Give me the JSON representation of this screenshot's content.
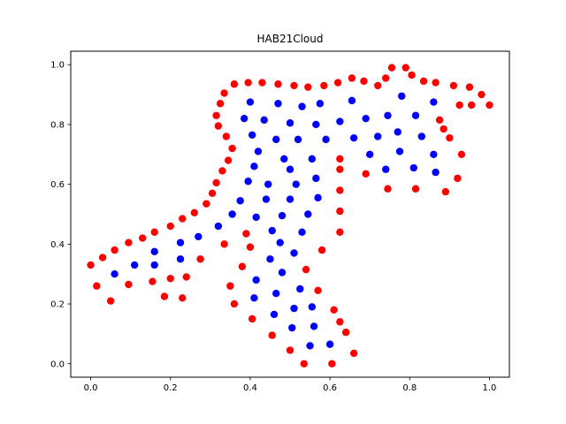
{
  "chart_data": {
    "type": "scatter",
    "title": "HAB21Cloud",
    "xlabel": "",
    "ylabel": "",
    "xlim": [
      -0.05,
      1.05
    ],
    "ylim": [
      -0.045,
      1.045
    ],
    "xticks": [
      0.0,
      0.2,
      0.4,
      0.6,
      0.8,
      1.0
    ],
    "xtick_labels": [
      "0.0",
      "0.2",
      "0.4",
      "0.6",
      "0.8",
      "1.0"
    ],
    "yticks": [
      0.0,
      0.2,
      0.4,
      0.6,
      0.8,
      1.0
    ],
    "ytick_labels": [
      "0.0",
      "0.2",
      "0.4",
      "0.6",
      "0.8",
      "1.0"
    ],
    "grid": false,
    "legend": false,
    "series": [
      {
        "color": "#ff0000",
        "points": [
          [
            0.0,
            0.33
          ],
          [
            0.015,
            0.26
          ],
          [
            0.03,
            0.355
          ],
          [
            0.05,
            0.21
          ],
          [
            0.06,
            0.38
          ],
          [
            0.095,
            0.265
          ],
          [
            0.095,
            0.405
          ],
          [
            0.13,
            0.42
          ],
          [
            0.155,
            0.275
          ],
          [
            0.16,
            0.44
          ],
          [
            0.185,
            0.225
          ],
          [
            0.2,
            0.46
          ],
          [
            0.2,
            0.285
          ],
          [
            0.23,
            0.22
          ],
          [
            0.23,
            0.485
          ],
          [
            0.24,
            0.29
          ],
          [
            0.26,
            0.505
          ],
          [
            0.275,
            0.35
          ],
          [
            0.29,
            0.535
          ],
          [
            0.305,
            0.57
          ],
          [
            0.315,
            0.605
          ],
          [
            0.315,
            0.83
          ],
          [
            0.32,
            0.795
          ],
          [
            0.325,
            0.87
          ],
          [
            0.33,
            0.645
          ],
          [
            0.335,
            0.905
          ],
          [
            0.335,
            0.4
          ],
          [
            0.34,
            0.76
          ],
          [
            0.345,
            0.68
          ],
          [
            0.35,
            0.26
          ],
          [
            0.355,
            0.72
          ],
          [
            0.36,
            0.935
          ],
          [
            0.36,
            0.2
          ],
          [
            0.38,
            0.325
          ],
          [
            0.39,
            0.435
          ],
          [
            0.395,
            0.94
          ],
          [
            0.4,
            0.39
          ],
          [
            0.405,
            0.15
          ],
          [
            0.43,
            0.94
          ],
          [
            0.455,
            0.095
          ],
          [
            0.47,
            0.935
          ],
          [
            0.5,
            0.045
          ],
          [
            0.51,
            0.93
          ],
          [
            0.535,
            0.0
          ],
          [
            0.54,
            0.315
          ],
          [
            0.545,
            0.925
          ],
          [
            0.57,
            0.245
          ],
          [
            0.58,
            0.38
          ],
          [
            0.585,
            0.93
          ],
          [
            0.605,
            0.0
          ],
          [
            0.61,
            0.18
          ],
          [
            0.62,
            0.94
          ],
          [
            0.625,
            0.44
          ],
          [
            0.625,
            0.51
          ],
          [
            0.625,
            0.58
          ],
          [
            0.625,
            0.65
          ],
          [
            0.625,
            0.685
          ],
          [
            0.625,
            0.14
          ],
          [
            0.64,
            0.105
          ],
          [
            0.655,
            0.955
          ],
          [
            0.66,
            0.035
          ],
          [
            0.685,
            0.945
          ],
          [
            0.69,
            0.635
          ],
          [
            0.72,
            0.93
          ],
          [
            0.74,
            0.955
          ],
          [
            0.745,
            0.585
          ],
          [
            0.755,
            0.99
          ],
          [
            0.79,
            0.99
          ],
          [
            0.805,
            0.965
          ],
          [
            0.815,
            0.585
          ],
          [
            0.835,
            0.945
          ],
          [
            0.865,
            0.94
          ],
          [
            0.875,
            0.815
          ],
          [
            0.885,
            0.785
          ],
          [
            0.89,
            0.575
          ],
          [
            0.9,
            0.755
          ],
          [
            0.91,
            0.93
          ],
          [
            0.92,
            0.62
          ],
          [
            0.925,
            0.865
          ],
          [
            0.93,
            0.7
          ],
          [
            0.95,
            0.925
          ],
          [
            0.955,
            0.865
          ],
          [
            0.98,
            0.9
          ],
          [
            1.0,
            0.865
          ]
        ]
      },
      {
        "color": "#0000ff",
        "points": [
          [
            0.06,
            0.3
          ],
          [
            0.11,
            0.33
          ],
          [
            0.16,
            0.375
          ],
          [
            0.16,
            0.33
          ],
          [
            0.225,
            0.405
          ],
          [
            0.225,
            0.35
          ],
          [
            0.27,
            0.425
          ],
          [
            0.32,
            0.46
          ],
          [
            0.355,
            0.5
          ],
          [
            0.375,
            0.545
          ],
          [
            0.385,
            0.82
          ],
          [
            0.395,
            0.61
          ],
          [
            0.4,
            0.875
          ],
          [
            0.405,
            0.765
          ],
          [
            0.41,
            0.66
          ],
          [
            0.41,
            0.22
          ],
          [
            0.415,
            0.49
          ],
          [
            0.415,
            0.28
          ],
          [
            0.42,
            0.71
          ],
          [
            0.435,
            0.815
          ],
          [
            0.44,
            0.55
          ],
          [
            0.445,
            0.6
          ],
          [
            0.45,
            0.35
          ],
          [
            0.455,
            0.445
          ],
          [
            0.46,
            0.165
          ],
          [
            0.465,
            0.75
          ],
          [
            0.465,
            0.235
          ],
          [
            0.47,
            0.87
          ],
          [
            0.475,
            0.405
          ],
          [
            0.48,
            0.305
          ],
          [
            0.48,
            0.495
          ],
          [
            0.485,
            0.685
          ],
          [
            0.5,
            0.65
          ],
          [
            0.5,
            0.805
          ],
          [
            0.5,
            0.55
          ],
          [
            0.505,
            0.12
          ],
          [
            0.51,
            0.185
          ],
          [
            0.51,
            0.37
          ],
          [
            0.515,
            0.6
          ],
          [
            0.52,
            0.75
          ],
          [
            0.525,
            0.25
          ],
          [
            0.53,
            0.86
          ],
          [
            0.53,
            0.44
          ],
          [
            0.545,
            0.5
          ],
          [
            0.55,
            0.06
          ],
          [
            0.555,
            0.19
          ],
          [
            0.555,
            0.685
          ],
          [
            0.56,
            0.125
          ],
          [
            0.565,
            0.8
          ],
          [
            0.565,
            0.62
          ],
          [
            0.57,
            0.555
          ],
          [
            0.575,
            0.87
          ],
          [
            0.59,
            0.75
          ],
          [
            0.6,
            0.065
          ],
          [
            0.625,
            0.81
          ],
          [
            0.655,
            0.88
          ],
          [
            0.66,
            0.755
          ],
          [
            0.69,
            0.82
          ],
          [
            0.7,
            0.7
          ],
          [
            0.72,
            0.76
          ],
          [
            0.74,
            0.65
          ],
          [
            0.745,
            0.83
          ],
          [
            0.77,
            0.775
          ],
          [
            0.775,
            0.71
          ],
          [
            0.78,
            0.895
          ],
          [
            0.81,
            0.655
          ],
          [
            0.815,
            0.83
          ],
          [
            0.83,
            0.76
          ],
          [
            0.86,
            0.875
          ],
          [
            0.86,
            0.7
          ],
          [
            0.865,
            0.64
          ]
        ]
      }
    ]
  }
}
